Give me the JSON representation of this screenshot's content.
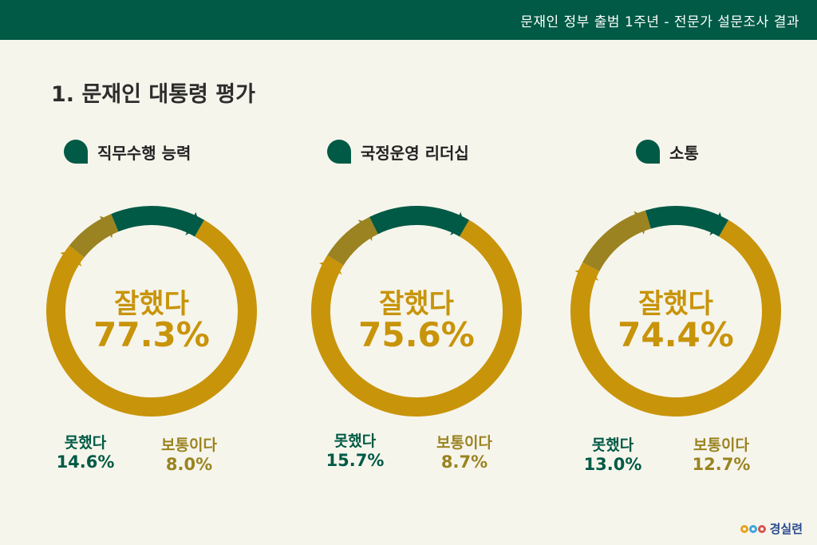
{
  "header": {
    "title": "문재인 정부 출범 1주년 - 전문가 설문조사 결과"
  },
  "section": {
    "title": "1. 문재인 대통령 평가"
  },
  "colors": {
    "positive": "#c8940a",
    "negative": "#005a45",
    "neutral": "#9a8320",
    "header": "#005a45"
  },
  "chart_data": [
    {
      "type": "pie",
      "title": "직무수행 능력",
      "labels": [
        "잘했다",
        "못했다",
        "보통이다"
      ],
      "values": [
        77.3,
        14.6,
        8.0
      ],
      "display": {
        "center_text": "잘했다",
        "center_value": "77.3%",
        "neg_label": "못했다",
        "neg_value": "14.6%",
        "neu_label": "보통이다",
        "neu_value": "8.0%"
      }
    },
    {
      "type": "pie",
      "title": "국정운영 리더십",
      "labels": [
        "잘했다",
        "못했다",
        "보통이다"
      ],
      "values": [
        75.6,
        15.7,
        8.7
      ],
      "display": {
        "center_text": "잘했다",
        "center_value": "75.6%",
        "neg_label": "못했다",
        "neg_value": "15.7%",
        "neu_label": "보통이다",
        "neu_value": "8.7%"
      }
    },
    {
      "type": "pie",
      "title": "소통",
      "labels": [
        "잘했다",
        "못했다",
        "보통이다"
      ],
      "values": [
        74.4,
        13.0,
        12.7
      ],
      "display": {
        "center_text": "잘했다",
        "center_value": "74.4%",
        "neg_label": "못했다",
        "neg_value": "13.0%",
        "neu_label": "보통이다",
        "neu_value": "12.7%"
      }
    }
  ],
  "logo": {
    "text": "경실련"
  }
}
